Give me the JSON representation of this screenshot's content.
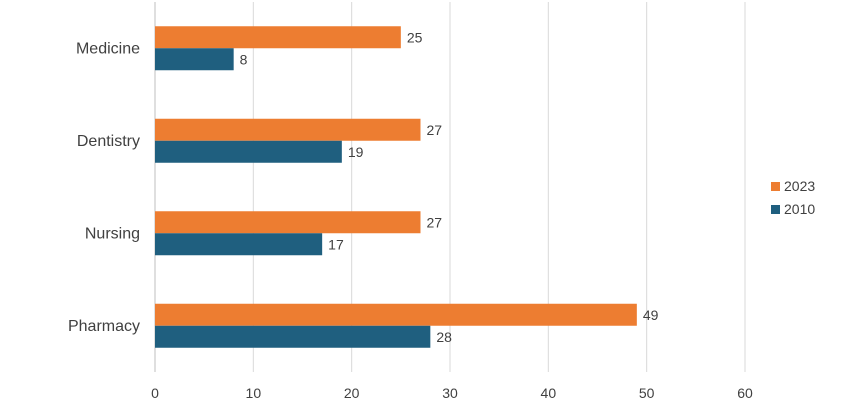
{
  "chart_data": {
    "type": "bar",
    "orientation": "horizontal",
    "categories": [
      "Medicine",
      "Dentistry",
      "Nursing",
      "Pharmacy"
    ],
    "series": [
      {
        "name": "2023",
        "values": [
          25,
          27,
          27,
          49
        ],
        "color": "#ED7D31"
      },
      {
        "name": "2010",
        "values": [
          8,
          19,
          17,
          28
        ],
        "color": "#1F5F7F"
      }
    ],
    "xlim": [
      0,
      60
    ],
    "xticks": [
      0,
      10,
      20,
      30,
      40,
      50,
      60
    ],
    "grid": true,
    "legend_position": "right",
    "data_labels": true,
    "colors": {
      "grid": "#D9D9D9",
      "text": "#404040"
    }
  }
}
